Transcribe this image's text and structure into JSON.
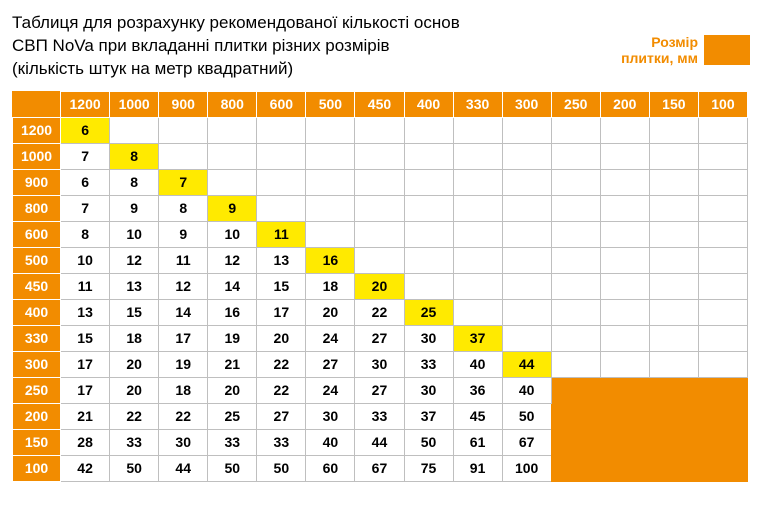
{
  "title_lines": [
    "Таблиця для розрахунку рекомендованої кількості основ",
    "СВП NoVa при вкладанні плитки різних розмірів",
    "(кількість штук на метр квадратний)"
  ],
  "legend_label_lines": [
    "Розмір",
    "плитки, мм"
  ],
  "colors": {
    "accent": "#f28c00",
    "highlight": "#ffea00",
    "grid": "#bfbfbf",
    "header_text": "#ffffff",
    "cell_text": "#000000",
    "background": "#ffffff"
  },
  "font_size_title": 17,
  "font_size_cells": 14,
  "column_headers": [
    "1200",
    "1000",
    "900",
    "800",
    "600",
    "500",
    "450",
    "400",
    "330",
    "300",
    "250",
    "200",
    "150",
    "100"
  ],
  "row_headers": [
    "1200",
    "1000",
    "900",
    "800",
    "600",
    "500",
    "450",
    "400",
    "330",
    "300",
    "250",
    "200",
    "150",
    "100"
  ],
  "values": [
    [
      6,
      null,
      null,
      null,
      null,
      null,
      null,
      null,
      null,
      null,
      null,
      null,
      null,
      null
    ],
    [
      7,
      8,
      null,
      null,
      null,
      null,
      null,
      null,
      null,
      null,
      null,
      null,
      null,
      null
    ],
    [
      6,
      8,
      7,
      null,
      null,
      null,
      null,
      null,
      null,
      null,
      null,
      null,
      null,
      null
    ],
    [
      7,
      9,
      8,
      9,
      null,
      null,
      null,
      null,
      null,
      null,
      null,
      null,
      null,
      null
    ],
    [
      8,
      10,
      9,
      10,
      11,
      null,
      null,
      null,
      null,
      null,
      null,
      null,
      null,
      null
    ],
    [
      10,
      12,
      11,
      12,
      13,
      16,
      null,
      null,
      null,
      null,
      null,
      null,
      null,
      null
    ],
    [
      11,
      13,
      12,
      14,
      15,
      18,
      20,
      null,
      null,
      null,
      null,
      null,
      null,
      null
    ],
    [
      13,
      15,
      14,
      16,
      17,
      20,
      22,
      25,
      null,
      null,
      null,
      null,
      null,
      null
    ],
    [
      15,
      18,
      17,
      19,
      20,
      24,
      27,
      30,
      37,
      null,
      null,
      null,
      null,
      null
    ],
    [
      17,
      20,
      19,
      21,
      22,
      27,
      30,
      33,
      40,
      44,
      null,
      null,
      null,
      null
    ],
    [
      17,
      20,
      18,
      20,
      22,
      24,
      27,
      30,
      36,
      40,
      null,
      null,
      null,
      null
    ],
    [
      21,
      22,
      22,
      25,
      27,
      30,
      33,
      37,
      45,
      50,
      null,
      null,
      null,
      null
    ],
    [
      28,
      33,
      30,
      33,
      33,
      40,
      44,
      50,
      61,
      67,
      null,
      null,
      null,
      null
    ],
    [
      42,
      50,
      44,
      50,
      50,
      60,
      67,
      75,
      91,
      100,
      null,
      null,
      null,
      null
    ]
  ],
  "diagonal_cells": [
    [
      0,
      0
    ],
    [
      1,
      1
    ],
    [
      2,
      2
    ],
    [
      3,
      3
    ],
    [
      4,
      4
    ],
    [
      5,
      5
    ],
    [
      6,
      6
    ],
    [
      7,
      7
    ],
    [
      8,
      8
    ],
    [
      9,
      9
    ]
  ],
  "legend_fill_block": {
    "row_start": 10,
    "row_end": 13,
    "col_start": 10,
    "col_end": 13
  }
}
